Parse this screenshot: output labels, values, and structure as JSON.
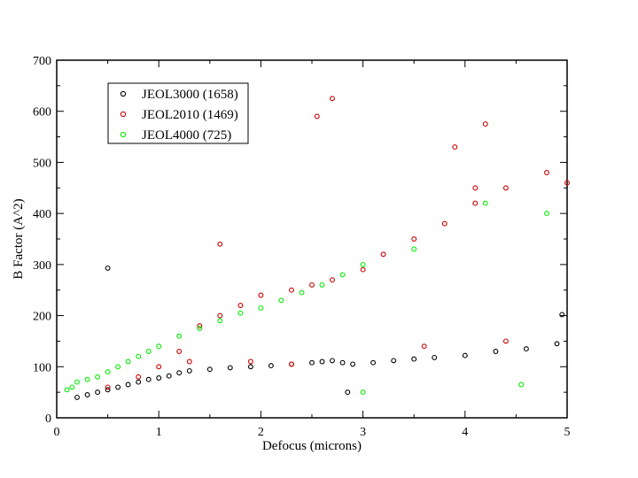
{
  "chart_data": {
    "type": "scatter",
    "title": "",
    "xlabel": "Defocus (microns)",
    "ylabel": "B Factor (A^2)",
    "xlim": [
      0,
      5
    ],
    "ylim": [
      0,
      700
    ],
    "xticks": [
      "0",
      "1",
      "2",
      "3",
      "4",
      "5"
    ],
    "yticks": [
      "0",
      "100",
      "200",
      "300",
      "400",
      "500",
      "600",
      "700"
    ],
    "grid": false,
    "legend_position": "top-left",
    "series": [
      {
        "name": "JEOL3000 (1658)",
        "color": "#000000",
        "points": [
          [
            0.2,
            40
          ],
          [
            0.3,
            45
          ],
          [
            0.4,
            50
          ],
          [
            0.5,
            55
          ],
          [
            0.6,
            60
          ],
          [
            0.7,
            65
          ],
          [
            0.8,
            70
          ],
          [
            0.9,
            75
          ],
          [
            1.0,
            78
          ],
          [
            1.1,
            82
          ],
          [
            1.2,
            88
          ],
          [
            1.3,
            92
          ],
          [
            1.5,
            95
          ],
          [
            1.7,
            98
          ],
          [
            1.9,
            100
          ],
          [
            2.1,
            102
          ],
          [
            2.3,
            105
          ],
          [
            2.5,
            108
          ],
          [
            2.6,
            110
          ],
          [
            2.7,
            112
          ],
          [
            2.8,
            108
          ],
          [
            2.9,
            105
          ],
          [
            3.1,
            108
          ],
          [
            3.3,
            112
          ],
          [
            3.5,
            115
          ],
          [
            3.7,
            118
          ],
          [
            4.0,
            122
          ],
          [
            4.3,
            130
          ],
          [
            4.6,
            135
          ],
          [
            4.9,
            145
          ],
          [
            0.5,
            293
          ],
          [
            4.95,
            202
          ],
          [
            2.85,
            50
          ]
        ]
      },
      {
        "name": "JEOL2010 (1469)",
        "color": "#cc0000",
        "points": [
          [
            0.5,
            60
          ],
          [
            0.8,
            80
          ],
          [
            1.0,
            100
          ],
          [
            1.2,
            130
          ],
          [
            1.4,
            180
          ],
          [
            1.6,
            200
          ],
          [
            1.8,
            220
          ],
          [
            2.0,
            240
          ],
          [
            2.3,
            250
          ],
          [
            2.5,
            260
          ],
          [
            2.7,
            270
          ],
          [
            3.0,
            290
          ],
          [
            3.2,
            320
          ],
          [
            3.5,
            350
          ],
          [
            3.8,
            380
          ],
          [
            4.1,
            420
          ],
          [
            4.4,
            450
          ],
          [
            4.8,
            480
          ],
          [
            5.0,
            460
          ],
          [
            2.7,
            625
          ],
          [
            2.55,
            590
          ],
          [
            4.2,
            575
          ],
          [
            4.1,
            450
          ],
          [
            3.9,
            530
          ],
          [
            1.6,
            340
          ],
          [
            1.3,
            110
          ],
          [
            1.9,
            110
          ],
          [
            2.3,
            105
          ],
          [
            3.6,
            140
          ],
          [
            4.4,
            150
          ]
        ]
      },
      {
        "name": "JEOL4000 (725)",
        "color": "#00ee00",
        "points": [
          [
            0.1,
            55
          ],
          [
            0.15,
            60
          ],
          [
            0.2,
            70
          ],
          [
            0.3,
            75
          ],
          [
            0.4,
            80
          ],
          [
            0.5,
            90
          ],
          [
            0.6,
            100
          ],
          [
            0.7,
            110
          ],
          [
            0.8,
            120
          ],
          [
            0.9,
            130
          ],
          [
            1.0,
            140
          ],
          [
            1.2,
            160
          ],
          [
            1.4,
            175
          ],
          [
            1.6,
            190
          ],
          [
            1.8,
            205
          ],
          [
            2.0,
            215
          ],
          [
            2.2,
            230
          ],
          [
            2.4,
            245
          ],
          [
            2.6,
            260
          ],
          [
            2.8,
            280
          ],
          [
            3.0,
            300
          ],
          [
            3.5,
            330
          ],
          [
            4.2,
            420
          ],
          [
            4.8,
            400
          ],
          [
            4.55,
            65
          ],
          [
            3.0,
            50
          ]
        ]
      }
    ]
  }
}
